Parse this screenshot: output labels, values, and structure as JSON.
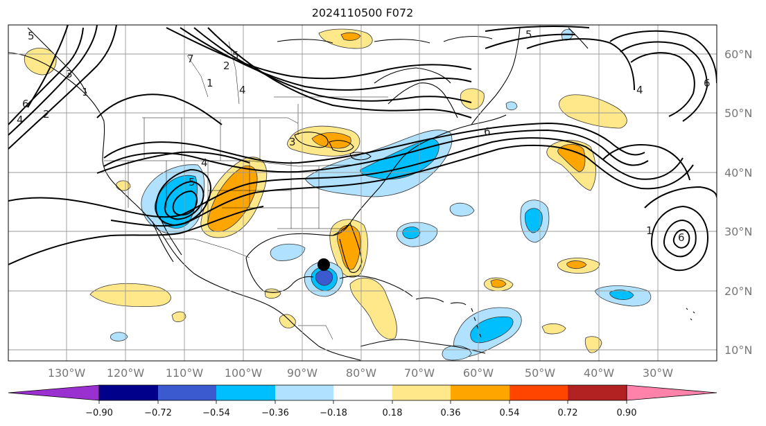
{
  "title": "2024110500 F072",
  "map": {
    "lon_labels": [
      "130°W",
      "120°W",
      "110°W",
      "100°W",
      "90°W",
      "80°W",
      "70°W",
      "60°W",
      "50°W",
      "40°W",
      "30°W"
    ],
    "lat_labels": [
      "60°N",
      "50°N",
      "40°N",
      "30°N",
      "20°N",
      "10°N"
    ],
    "contour_labels": [
      "5",
      "6",
      "2",
      "4",
      "3",
      "1",
      "2",
      "4",
      "7",
      "5",
      "1",
      "4",
      "3",
      "5",
      "4",
      "6",
      "1",
      "6",
      "5",
      "6"
    ],
    "storm_marker": "black-dot"
  },
  "colorbar": {
    "ticks": [
      "−0.90",
      "−0.72",
      "−0.54",
      "−0.36",
      "−0.18",
      "0.18",
      "0.36",
      "0.54",
      "0.72",
      "0.90"
    ],
    "colors": {
      "lt_-0.90": "#9b30d0",
      "-0.90_-0.72": "#00008b",
      "-0.72_-0.54": "#3c5ad0",
      "-0.54_-0.36": "#00bfff",
      "-0.36_-0.18": "#b0e2ff",
      "-0.18_0.18": "#ffffff",
      "0.18_0.36": "#ffe88a",
      "0.36_0.54": "#ffa500",
      "0.54_0.72": "#ff4500",
      "0.72_0.90": "#b22222",
      "gt_0.90": "#ff82ab"
    }
  }
}
